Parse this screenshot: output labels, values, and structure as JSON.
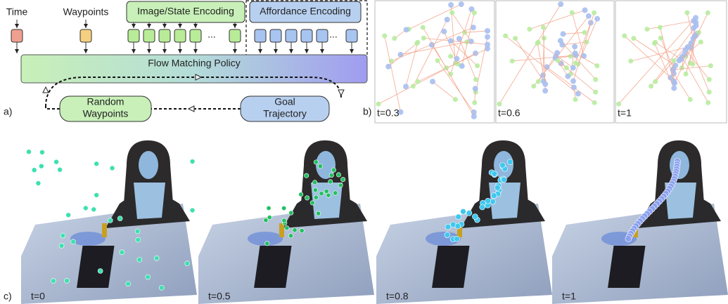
{
  "panel_a": {
    "label": "a)",
    "time": "Time",
    "waypoints": "Waypoints",
    "image_state_encoding": "Image/State Encoding",
    "affordance_encoding": "Affordance Encoding",
    "ellipsis": [
      "...",
      "..."
    ],
    "policy": "Flow Matching Policy",
    "random_waypoints": [
      "Random",
      "Waypoints"
    ],
    "goal_trajectory": [
      "Goal",
      "Trajectory"
    ]
  },
  "panel_b": {
    "label": "b)",
    "frames": [
      "t=0.3",
      "t=0.6",
      "t=1"
    ]
  },
  "panel_c": {
    "label": "c)",
    "frames": [
      "t=0",
      "t=0.5",
      "t=0.8",
      "t=1"
    ]
  }
}
